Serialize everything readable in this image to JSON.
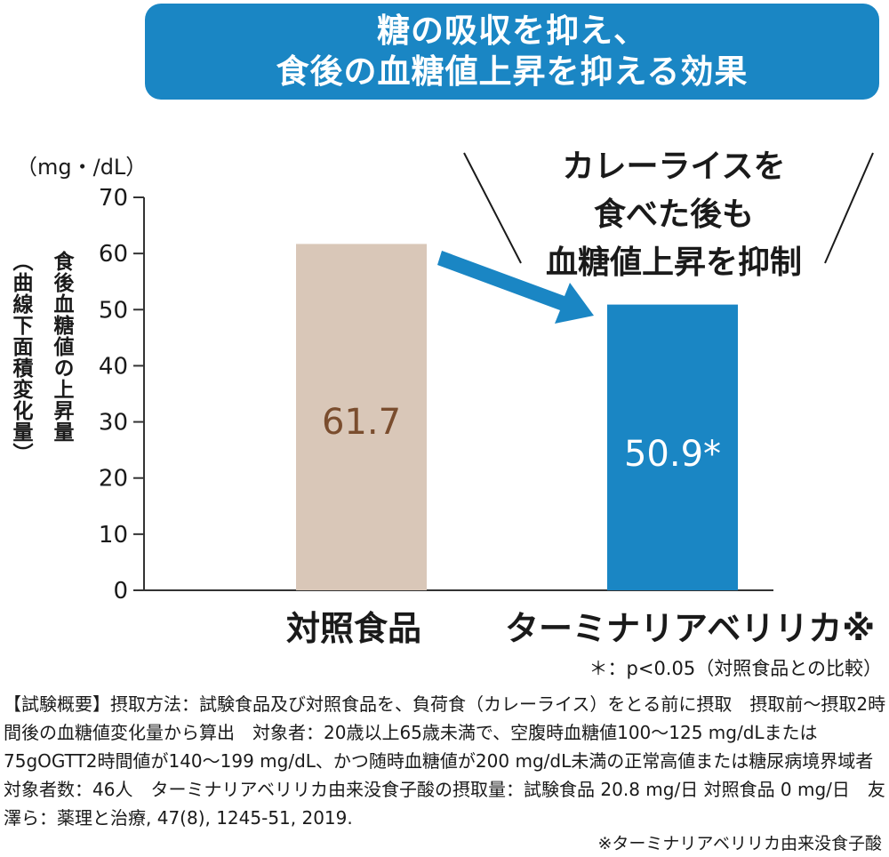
{
  "banner": {
    "line1": "糖の吸収を抑え、",
    "line2": "食後の血糖値上昇を抑える効果"
  },
  "callout": {
    "line1": "カレーライスを",
    "line2": "食べた後も",
    "line3": "血糖値上昇を抑制"
  },
  "chart_data": {
    "type": "bar",
    "unit_label": "（mg・/dL）",
    "ylabel": "食後血糖値の上昇量",
    "ylabel_sub": "（曲線下面積変化量）",
    "ylim": [
      0,
      70
    ],
    "yticks": [
      "0",
      "10",
      "20",
      "30",
      "40",
      "50",
      "60",
      "70"
    ],
    "categories": [
      "対照食品",
      "ターミナリアベリリカ※"
    ],
    "values": [
      61.7,
      50.9
    ],
    "value_labels": [
      "61.7",
      "50.9*"
    ],
    "colors": [
      "#d9c7b8",
      "#1a86c4"
    ],
    "grid": false
  },
  "significance_note": "＊：p<0.05（対照食品との比較）",
  "summary_text": "【試験概要】摂取方法：試験食品及び対照食品を、負荷食（カレーライス）をとる前に摂取　摂取前～摂取2時間後の血糖値変化量から算出　対象者：20歳以上65歳未満で、空腹時血糖値100～125 mg/dLまたは75gOGTT2時間値が140～199 mg/dL、かつ随時血糖値が200 mg/dL未満の正常高値または糖尿病境界域者　対象者数：46人　ターミナリアベリリカ由来没食子酸の摂取量：試験食品 20.8 mg/日 対照食品 0 mg/日　友澤ら：薬理と治療, 47(8), 1245-51, 2019.",
  "footnote": "※ターミナリアベリリカ由来没食子酸",
  "colors": {
    "accent": "#1a86c4",
    "control_bar": "#d9c7b8",
    "control_value_text": "#7a4d2e"
  }
}
